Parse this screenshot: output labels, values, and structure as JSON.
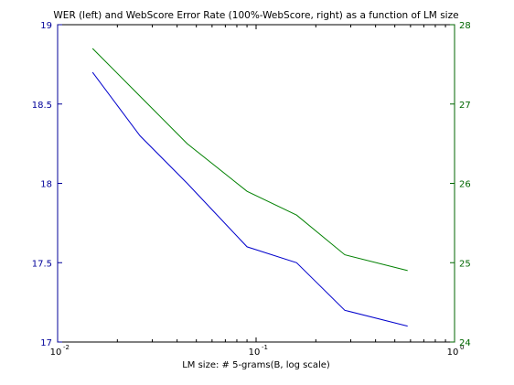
{
  "chart_data": {
    "type": "line",
    "title": "WER (left) and WebScore Error Rate (100%-WebScore, right) as a function of LM size",
    "xlabel": "LM size: # 5-grams(B, log scale)",
    "xscale": "log",
    "xlim": [
      0.01,
      1
    ],
    "x_ticks": [
      {
        "base": "10",
        "exp": "-2",
        "value": 0.01
      },
      {
        "base": "10",
        "exp": "-1",
        "value": 0.1
      },
      {
        "base": "10",
        "exp": "0",
        "value": 1
      }
    ],
    "y_left": {
      "ylim": [
        17,
        19
      ],
      "ticks": [
        "17",
        "17.5",
        "18",
        "18.5",
        "19"
      ],
      "tick_values": [
        17,
        17.5,
        18,
        18.5,
        19
      ],
      "color": "#000099"
    },
    "y_right": {
      "ylim": [
        24,
        28
      ],
      "ticks": [
        "24",
        "25",
        "26",
        "27",
        "28"
      ],
      "tick_values": [
        24,
        25,
        26,
        27,
        28
      ],
      "color": "#006600"
    },
    "grid": false,
    "series": [
      {
        "axis": "left",
        "color": "#0000cc",
        "x": [
          0.015,
          0.026,
          0.045,
          0.09,
          0.16,
          0.28,
          0.58
        ],
        "y": [
          18.7,
          18.3,
          18.0,
          17.6,
          17.5,
          17.2,
          17.1
        ]
      },
      {
        "axis": "right",
        "color": "#008000",
        "x": [
          0.015,
          0.026,
          0.045,
          0.09,
          0.16,
          0.28,
          0.58
        ],
        "y": [
          27.7,
          27.1,
          26.5,
          25.9,
          25.6,
          25.1,
          24.9
        ]
      }
    ]
  }
}
